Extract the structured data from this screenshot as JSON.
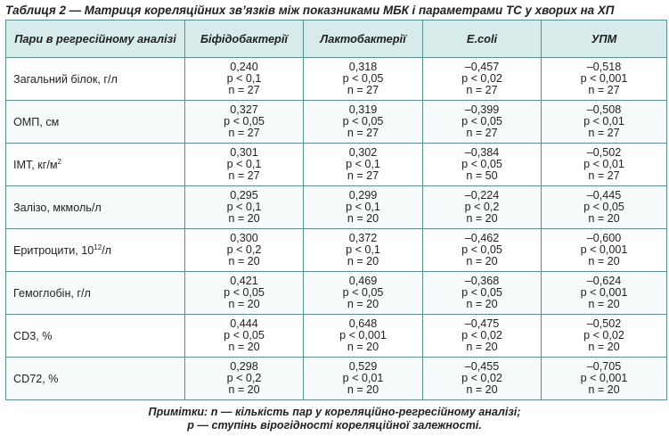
{
  "caption": "Таблиця 2 — Матриця кореляційних зв’язків між показниками МБК і параметрами ТС у хворих на ХП",
  "header": {
    "pairs": "Пари в регресійному аналізі",
    "bifido": "Біфідобактерії",
    "lacto": "Лактобактерії",
    "ecoli": "E.coli",
    "upm": "УПМ"
  },
  "rows": [
    {
      "label": "Загальний білок, г/л",
      "sup": "",
      "unit_after": "",
      "cells": [
        [
          "0,240",
          "p < 0,1",
          "n = 27"
        ],
        [
          "0,318",
          "p < 0,05",
          "n = 27"
        ],
        [
          "–0,457",
          "p < 0,02",
          "n = 27"
        ],
        [
          "–0,518",
          "p < 0,001",
          "n = 27"
        ]
      ]
    },
    {
      "label": "ОМП, см",
      "sup": "",
      "unit_after": "",
      "cells": [
        [
          "0,327",
          "p < 0,05",
          "n = 27"
        ],
        [
          "0,319",
          "p < 0,05",
          "n = 27"
        ],
        [
          "–0,399",
          "p < 0,05",
          "n = 27"
        ],
        [
          "–0,508",
          "p < 0,01",
          "n = 27"
        ]
      ]
    },
    {
      "label": "ІМТ, кг/м",
      "sup": "2",
      "unit_after": "",
      "cells": [
        [
          "0,301",
          "p < 0,1",
          "n = 27"
        ],
        [
          "0,302",
          "p < 0,1",
          "n = 27"
        ],
        [
          "–0,384",
          "p < 0,05",
          "n = 50"
        ],
        [
          "–0,502",
          "p < 0,01",
          "n = 27"
        ]
      ]
    },
    {
      "label": "Залізо, мкмоль/л",
      "sup": "",
      "unit_after": "",
      "cells": [
        [
          "0,295",
          "p < 0,1",
          "n = 20"
        ],
        [
          "0,299",
          "p < 0,1",
          "n = 20"
        ],
        [
          "–0,224",
          "p < 0,2",
          "n = 20"
        ],
        [
          "–0,445",
          "p < 0,05",
          "n = 20"
        ]
      ]
    },
    {
      "label": "Еритроцити, 10",
      "sup": "12",
      "unit_after": "/л",
      "cells": [
        [
          "0,300",
          "p < 0,2",
          "n = 20"
        ],
        [
          "0,372",
          "p < 0,1",
          "n = 20"
        ],
        [
          "–0,462",
          "p < 0,05",
          "n = 20"
        ],
        [
          "–0,600",
          "p < 0,001",
          "n = 20"
        ]
      ]
    },
    {
      "label": "Гемоглобін, г/л",
      "sup": "",
      "unit_after": "",
      "cells": [
        [
          "0,421",
          "p < 0,05",
          "n = 20"
        ],
        [
          "0,469",
          "p < 0,05",
          "n = 20"
        ],
        [
          "–0,368",
          "p < 0,05",
          "n = 20"
        ],
        [
          "–0,624",
          "p < 0,001",
          "n = 20"
        ]
      ]
    },
    {
      "label": "CD3, %",
      "sup": "",
      "unit_after": "",
      "cells": [
        [
          "0,444",
          "p < 0,05",
          "n = 20"
        ],
        [
          "0,648",
          "p < 0,001",
          "n = 20"
        ],
        [
          "–0,475",
          "p < 0,02",
          "n = 20"
        ],
        [
          "–0,502",
          "p < 0,02",
          "n = 20"
        ]
      ]
    },
    {
      "label": "CD72, %",
      "sup": "",
      "unit_after": "",
      "cells": [
        [
          "0,298",
          "p < 0,2",
          "n = 20"
        ],
        [
          "0,529",
          "p < 0,01",
          "n = 20"
        ],
        [
          "–0,455",
          "p < 0,02",
          "n = 20"
        ],
        [
          "–0,705",
          "p < 0,001",
          "n = 20"
        ]
      ]
    }
  ],
  "notes": {
    "line1": "Примітки: n — кількість пар у кореляційно-регресійному аналізі;",
    "line2": "p — ступінь вірогідності кореляційної залежності."
  },
  "colors": {
    "header_bg": "#d6ebea",
    "border": "#5a8f8c"
  }
}
